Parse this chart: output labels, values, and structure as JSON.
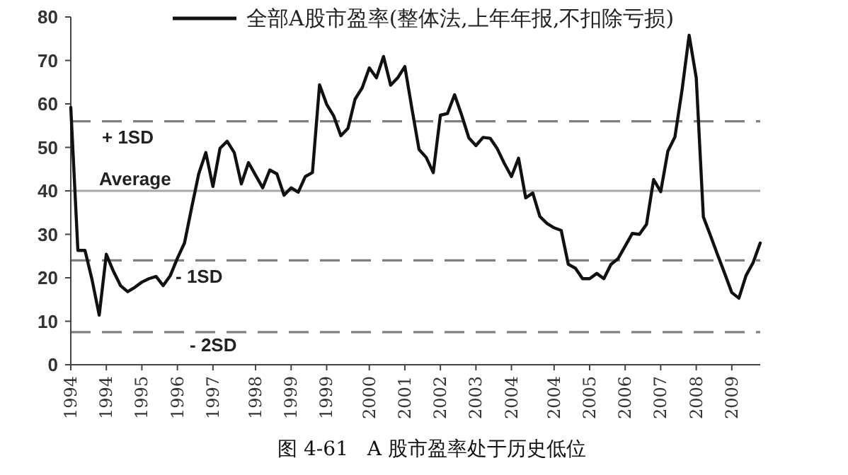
{
  "chart_data": {
    "type": "line",
    "title": "图 4-61   A 股市盈率处于历史低位",
    "ylim": [
      0,
      80
    ],
    "yticks": [
      0,
      10,
      20,
      30,
      40,
      50,
      60,
      70,
      80
    ],
    "categories": [
      "1994",
      null,
      null,
      null,
      null,
      "1994",
      null,
      null,
      null,
      null,
      "1995",
      null,
      null,
      null,
      null,
      "1996",
      null,
      null,
      null,
      null,
      "1997",
      null,
      null,
      null,
      null,
      null,
      "1998",
      null,
      null,
      null,
      null,
      "1999",
      null,
      null,
      null,
      null,
      "1999",
      null,
      null,
      null,
      null,
      null,
      "2000",
      null,
      null,
      null,
      null,
      "2001",
      null,
      null,
      null,
      null,
      "2002",
      null,
      null,
      null,
      null,
      "2003",
      null,
      null,
      null,
      null,
      "2004",
      null,
      null,
      null,
      null,
      null,
      "2004",
      null,
      null,
      null,
      null,
      "2005",
      null,
      null,
      null,
      null,
      "2006",
      null,
      null,
      null,
      null,
      "2007",
      null,
      null,
      null,
      null,
      "2008",
      null,
      null,
      null,
      null,
      "2009",
      null,
      null,
      null,
      null
    ],
    "grid": false,
    "legend": "top",
    "marker": "none",
    "line_style": "solid",
    "ref_lines": [
      {
        "axis": "y",
        "value": 56,
        "label": "+ 1SD",
        "color": "#808080",
        "line_style": "dashed"
      },
      {
        "axis": "y",
        "value": 40,
        "label": "Average",
        "color": "#a8a8a8",
        "line_style": "solid"
      },
      {
        "axis": "y",
        "value": 24,
        "label": "- 1SD",
        "color": "#808080",
        "line_style": "dashed"
      },
      {
        "axis": "y",
        "value": 7.5,
        "label": "- 2SD",
        "color": "#808080",
        "line_style": "dashed"
      }
    ],
    "series": [
      {
        "name": "全部A股市盈率(整体法,上年年报,不扣除亏损)",
        "color": "#111111",
        "values": [
          59.2,
          26.3,
          26.3,
          19.5,
          11.4,
          25.4,
          21.5,
          18.2,
          16.8,
          17.8,
          19.0,
          19.8,
          20.3,
          18.2,
          20.5,
          24.5,
          28,
          36.1,
          43.9,
          48.8,
          41.0,
          49.8,
          51.4,
          48.8,
          41.6,
          46.5,
          43.6,
          40.7,
          44.8,
          43.9,
          39.0,
          40.7,
          39.7,
          43.3,
          44.2,
          64.4,
          59.9,
          57.2,
          52.7,
          54.4,
          61.1,
          63.7,
          68.3,
          66.0,
          70.9,
          64.3,
          66.0,
          68.6,
          58.9,
          49.5,
          47.7,
          44.2,
          57.4,
          57.8,
          62.1,
          57.4,
          52.2,
          50.4,
          52.3,
          52.1,
          49.7,
          46.3,
          43.3,
          47.5,
          38.4,
          39.5,
          34.1,
          32.5,
          31.5,
          30.9,
          23.1,
          22.2,
          19.8,
          19.8,
          21.0,
          19.8,
          23.1,
          24.4,
          27.3,
          30.2,
          30.0,
          32.3,
          42.6,
          39.8,
          49.1,
          52.4,
          63.2,
          75.8,
          66.0,
          34.0,
          29.7,
          25.3,
          21.0,
          16.6,
          15.3,
          20.5,
          23.5,
          28.0
        ]
      }
    ]
  }
}
